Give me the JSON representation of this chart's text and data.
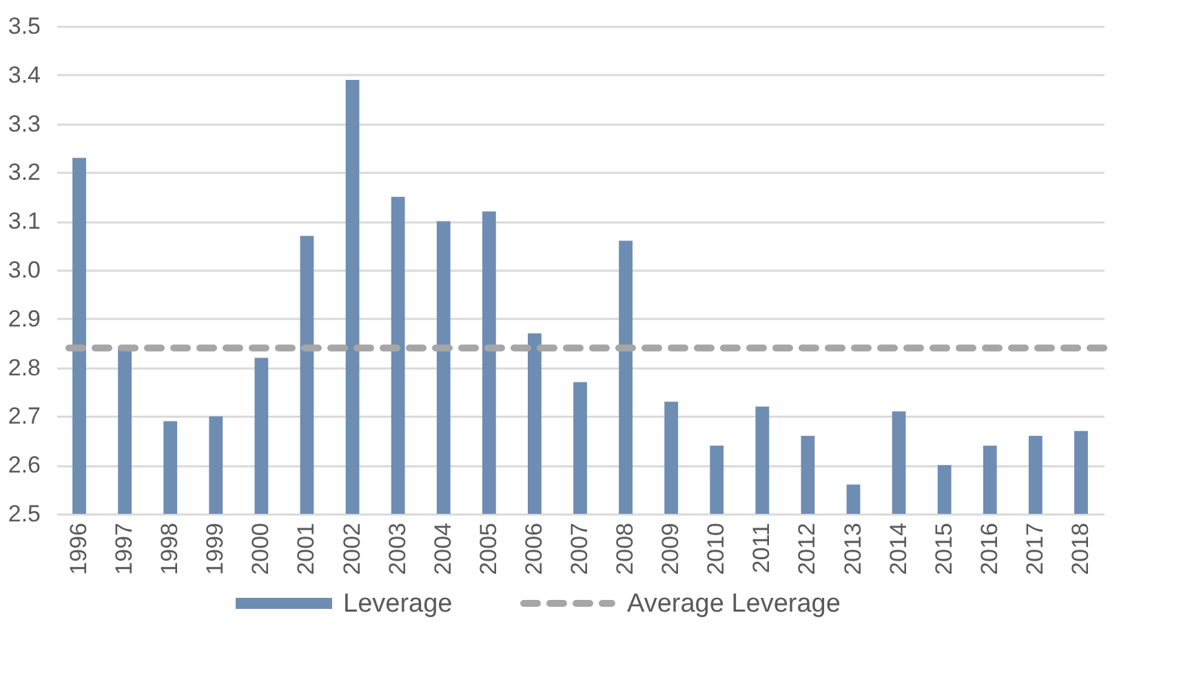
{
  "chart_data": {
    "type": "bar",
    "categories": [
      "1996",
      "1997",
      "1998",
      "1999",
      "2000",
      "2001",
      "2002",
      "2003",
      "2004",
      "2005",
      "2006",
      "2007",
      "2008",
      "2009",
      "2010",
      "2011",
      "2012",
      "2013",
      "2014",
      "2015",
      "2016",
      "2017",
      "2018"
    ],
    "series": [
      {
        "name": "Leverage",
        "color": "#6e8db3",
        "values": [
          3.23,
          2.84,
          2.69,
          2.7,
          2.82,
          3.07,
          3.39,
          3.15,
          3.1,
          3.12,
          2.87,
          2.77,
          3.06,
          2.73,
          2.64,
          2.72,
          2.66,
          2.56,
          2.71,
          2.6,
          2.64,
          2.66,
          2.67
        ]
      }
    ],
    "ref_lines": [
      {
        "axis": "y",
        "value": 2.84,
        "label": "Average Leverage",
        "color": "#a6a6a6",
        "line_style": "dashed"
      }
    ],
    "ylim": [
      2.5,
      3.5
    ],
    "yticks": [
      {
        "value": 2.5,
        "label": "2.5"
      },
      {
        "value": 2.6,
        "label": "2.6"
      },
      {
        "value": 2.7,
        "label": "2.7"
      },
      {
        "value": 2.8,
        "label": "2.8"
      },
      {
        "value": 2.9,
        "label": "2.9"
      },
      {
        "value": 3.0,
        "label": "3.0"
      },
      {
        "value": 3.1,
        "label": "3.1"
      },
      {
        "value": 3.2,
        "label": "3.2"
      },
      {
        "value": 3.3,
        "label": "3.3"
      },
      {
        "value": 3.4,
        "label": "3.4"
      },
      {
        "value": 3.5,
        "label": "3.5"
      }
    ],
    "grid": "y",
    "legend": "bottom"
  }
}
